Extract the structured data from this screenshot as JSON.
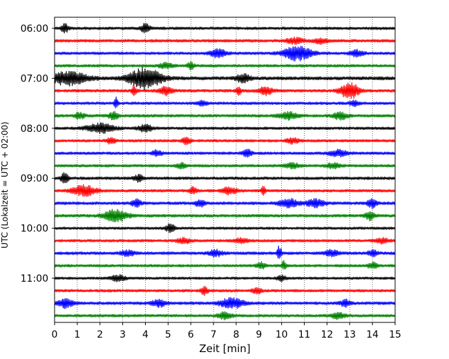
{
  "chart_data": {
    "type": "line",
    "title": "",
    "xlabel": "Zeit  [min]",
    "ylabel": "UTC (Lokalzeit = UTC + 02:00)",
    "xlim": [
      0,
      15
    ],
    "x_ticks": [
      0,
      1,
      2,
      3,
      4,
      5,
      6,
      7,
      8,
      9,
      10,
      11,
      12,
      13,
      14,
      15
    ],
    "y_tick_labels": [
      "06:00",
      "07:00",
      "08:00",
      "09:00",
      "10:00",
      "11:00"
    ],
    "y_tick_trace_index": [
      0,
      4,
      8,
      12,
      16,
      20
    ],
    "grid": "vertical dotted at each minute",
    "trace_minutes": 15,
    "color_cycle": [
      "#000000",
      "#ff0000",
      "#0000ff",
      "#008000"
    ],
    "traces": [
      {
        "start": "06:00",
        "color": "#000000",
        "noise": 0.28,
        "events": [
          {
            "t": 0.45,
            "amp": 0.9,
            "width": 0.15
          },
          {
            "t": 4.0,
            "amp": 0.85,
            "width": 0.2
          }
        ]
      },
      {
        "start": "06:15",
        "color": "#ff0000",
        "noise": 0.3,
        "events": [
          {
            "t": 10.6,
            "amp": 0.55,
            "width": 0.35
          },
          {
            "t": 11.7,
            "amp": 0.5,
            "width": 0.3
          }
        ]
      },
      {
        "start": "06:30",
        "color": "#0000ff",
        "noise": 0.28,
        "events": [
          {
            "t": 7.2,
            "amp": 0.8,
            "width": 0.35
          },
          {
            "t": 10.7,
            "amp": 1.4,
            "width": 0.6
          },
          {
            "t": 13.3,
            "amp": 0.6,
            "width": 0.3
          }
        ]
      },
      {
        "start": "06:45",
        "color": "#008000",
        "noise": 0.28,
        "events": [
          {
            "t": 4.9,
            "amp": 0.5,
            "width": 0.3
          },
          {
            "t": 6.0,
            "amp": 0.7,
            "width": 0.15
          }
        ]
      },
      {
        "start": "07:00",
        "color": "#000000",
        "noise": 0.35,
        "events": [
          {
            "t": 0.6,
            "amp": 1.3,
            "width": 0.8
          },
          {
            "t": 4.0,
            "amp": 2.0,
            "width": 0.7
          },
          {
            "t": 8.3,
            "amp": 0.8,
            "width": 0.3
          }
        ]
      },
      {
        "start": "07:15",
        "color": "#ff0000",
        "noise": 0.3,
        "events": [
          {
            "t": 3.5,
            "amp": 1.0,
            "width": 0.1
          },
          {
            "t": 4.9,
            "amp": 0.8,
            "width": 0.3
          },
          {
            "t": 8.1,
            "amp": 1.0,
            "width": 0.1
          },
          {
            "t": 9.3,
            "amp": 0.8,
            "width": 0.3
          },
          {
            "t": 13.0,
            "amp": 1.6,
            "width": 0.4
          }
        ]
      },
      {
        "start": "07:30",
        "color": "#0000ff",
        "noise": 0.28,
        "events": [
          {
            "t": 2.7,
            "amp": 1.3,
            "width": 0.08
          },
          {
            "t": 6.5,
            "amp": 0.5,
            "width": 0.2
          },
          {
            "t": 13.2,
            "amp": 0.5,
            "width": 0.2
          }
        ]
      },
      {
        "start": "07:45",
        "color": "#008000",
        "noise": 0.3,
        "events": [
          {
            "t": 1.1,
            "amp": 0.6,
            "width": 0.2
          },
          {
            "t": 2.6,
            "amp": 0.8,
            "width": 0.2
          },
          {
            "t": 10.3,
            "amp": 0.7,
            "width": 0.4
          },
          {
            "t": 12.6,
            "amp": 0.7,
            "width": 0.3
          }
        ]
      },
      {
        "start": "08:00",
        "color": "#000000",
        "noise": 0.28,
        "events": [
          {
            "t": 2.0,
            "amp": 0.9,
            "width": 0.6
          },
          {
            "t": 4.0,
            "amp": 0.7,
            "width": 0.3
          }
        ]
      },
      {
        "start": "08:15",
        "color": "#ff0000",
        "noise": 0.28,
        "events": [
          {
            "t": 2.5,
            "amp": 0.6,
            "width": 0.2
          },
          {
            "t": 5.8,
            "amp": 0.6,
            "width": 0.2
          },
          {
            "t": 10.5,
            "amp": 0.5,
            "width": 0.3
          }
        ]
      },
      {
        "start": "08:30",
        "color": "#0000ff",
        "noise": 0.28,
        "events": [
          {
            "t": 4.5,
            "amp": 0.6,
            "width": 0.2
          },
          {
            "t": 8.5,
            "amp": 0.7,
            "width": 0.2
          },
          {
            "t": 12.5,
            "amp": 0.6,
            "width": 0.4
          }
        ]
      },
      {
        "start": "08:45",
        "color": "#008000",
        "noise": 0.28,
        "events": [
          {
            "t": 5.6,
            "amp": 0.5,
            "width": 0.2
          },
          {
            "t": 10.5,
            "amp": 0.5,
            "width": 0.3
          },
          {
            "t": 12.3,
            "amp": 0.5,
            "width": 0.3
          }
        ]
      },
      {
        "start": "09:00",
        "color": "#000000",
        "noise": 0.3,
        "events": [
          {
            "t": 0.45,
            "amp": 1.2,
            "width": 0.15
          },
          {
            "t": 3.7,
            "amp": 0.6,
            "width": 0.2
          }
        ]
      },
      {
        "start": "09:15",
        "color": "#ff0000",
        "noise": 0.28,
        "events": [
          {
            "t": 1.3,
            "amp": 1.1,
            "width": 0.5
          },
          {
            "t": 6.1,
            "amp": 0.7,
            "width": 0.15
          },
          {
            "t": 7.7,
            "amp": 0.7,
            "width": 0.3
          },
          {
            "t": 9.2,
            "amp": 0.8,
            "width": 0.1
          }
        ]
      },
      {
        "start": "09:30",
        "color": "#0000ff",
        "noise": 0.3,
        "events": [
          {
            "t": 3.6,
            "amp": 0.7,
            "width": 0.2
          },
          {
            "t": 6.4,
            "amp": 0.7,
            "width": 0.2
          },
          {
            "t": 10.3,
            "amp": 0.9,
            "width": 0.4
          },
          {
            "t": 11.5,
            "amp": 0.7,
            "width": 0.4
          },
          {
            "t": 14.0,
            "amp": 0.9,
            "width": 0.2
          }
        ]
      },
      {
        "start": "09:45",
        "color": "#008000",
        "noise": 0.3,
        "events": [
          {
            "t": 2.7,
            "amp": 1.2,
            "width": 0.5
          },
          {
            "t": 13.9,
            "amp": 0.8,
            "width": 0.2
          }
        ]
      },
      {
        "start": "10:00",
        "color": "#000000",
        "noise": 0.26,
        "events": [
          {
            "t": 5.1,
            "amp": 0.8,
            "width": 0.2
          }
        ]
      },
      {
        "start": "10:15",
        "color": "#ff0000",
        "noise": 0.28,
        "events": [
          {
            "t": 5.7,
            "amp": 0.5,
            "width": 0.3
          },
          {
            "t": 8.2,
            "amp": 0.5,
            "width": 0.3
          },
          {
            "t": 14.4,
            "amp": 0.5,
            "width": 0.3
          }
        ]
      },
      {
        "start": "10:30",
        "color": "#0000ff",
        "noise": 0.3,
        "events": [
          {
            "t": 3.2,
            "amp": 0.5,
            "width": 0.3
          },
          {
            "t": 7.1,
            "amp": 0.6,
            "width": 0.3
          },
          {
            "t": 9.9,
            "amp": 1.4,
            "width": 0.1
          },
          {
            "t": 12.2,
            "amp": 0.6,
            "width": 0.3
          },
          {
            "t": 14.0,
            "amp": 0.6,
            "width": 0.2
          }
        ]
      },
      {
        "start": "10:45",
        "color": "#008000",
        "noise": 0.28,
        "events": [
          {
            "t": 9.1,
            "amp": 0.6,
            "width": 0.2
          },
          {
            "t": 10.1,
            "amp": 0.9,
            "width": 0.1
          },
          {
            "t": 14.0,
            "amp": 0.6,
            "width": 0.2
          }
        ]
      },
      {
        "start": "11:00",
        "color": "#000000",
        "noise": 0.26,
        "events": [
          {
            "t": 2.8,
            "amp": 0.6,
            "width": 0.3
          },
          {
            "t": 10.0,
            "amp": 0.5,
            "width": 0.2
          }
        ]
      },
      {
        "start": "11:15",
        "color": "#ff0000",
        "noise": 0.28,
        "events": [
          {
            "t": 6.6,
            "amp": 0.8,
            "width": 0.15
          },
          {
            "t": 8.9,
            "amp": 0.6,
            "width": 0.2
          }
        ]
      },
      {
        "start": "11:30",
        "color": "#0000ff",
        "noise": 0.3,
        "events": [
          {
            "t": 0.5,
            "amp": 0.9,
            "width": 0.3
          },
          {
            "t": 4.6,
            "amp": 0.7,
            "width": 0.3
          },
          {
            "t": 7.8,
            "amp": 1.0,
            "width": 0.5
          },
          {
            "t": 12.8,
            "amp": 0.7,
            "width": 0.2
          }
        ]
      },
      {
        "start": "11:45",
        "color": "#008000",
        "noise": 0.28,
        "events": [
          {
            "t": 7.5,
            "amp": 0.7,
            "width": 0.3
          },
          {
            "t": 12.5,
            "amp": 0.6,
            "width": 0.3
          }
        ]
      }
    ]
  }
}
